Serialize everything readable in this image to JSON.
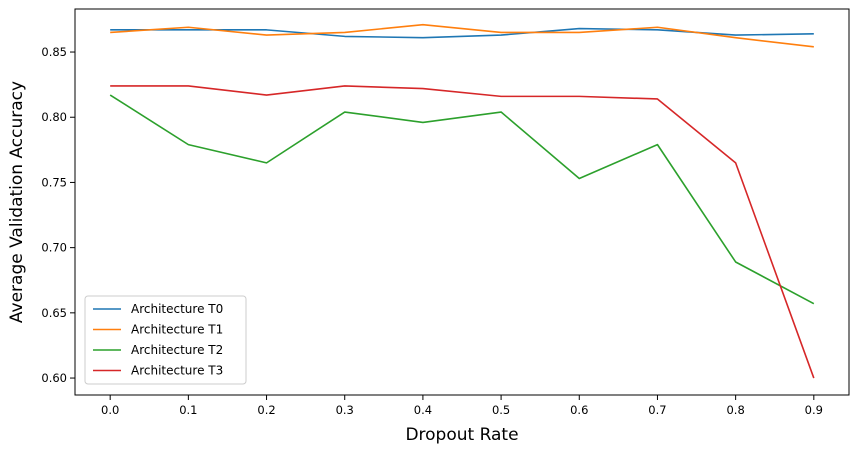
{
  "chart_data": {
    "type": "line",
    "title": "",
    "xlabel": "Dropout Rate",
    "ylabel": "Average Validation Accuracy",
    "x": [
      0.0,
      0.1,
      0.2,
      0.3,
      0.4,
      0.5,
      0.6,
      0.7,
      0.8,
      0.9
    ],
    "xticks": [
      "0.0",
      "0.1",
      "0.2",
      "0.3",
      "0.4",
      "0.5",
      "0.6",
      "0.7",
      "0.8",
      "0.9"
    ],
    "yticks": [
      "0.60",
      "0.65",
      "0.70",
      "0.75",
      "0.80",
      "0.85"
    ],
    "xlim": [
      -0.045,
      0.945
    ],
    "ylim": [
      0.587,
      0.883
    ],
    "grid": false,
    "legend_position": "lower-left",
    "series": [
      {
        "name": "Architecture T0",
        "color": "#1f77b4",
        "values": [
          0.867,
          0.867,
          0.867,
          0.862,
          0.861,
          0.863,
          0.868,
          0.867,
          0.863,
          0.864
        ]
      },
      {
        "name": "Architecture T1",
        "color": "#ff7f0e",
        "values": [
          0.865,
          0.869,
          0.863,
          0.865,
          0.871,
          0.865,
          0.865,
          0.869,
          0.861,
          0.854
        ]
      },
      {
        "name": "Architecture T2",
        "color": "#2ca02c",
        "values": [
          0.817,
          0.779,
          0.765,
          0.804,
          0.796,
          0.804,
          0.753,
          0.779,
          0.689,
          0.657
        ]
      },
      {
        "name": "Architecture T3",
        "color": "#d62728",
        "values": [
          0.824,
          0.824,
          0.817,
          0.824,
          0.822,
          0.816,
          0.816,
          0.814,
          0.765,
          0.6
        ]
      }
    ]
  }
}
